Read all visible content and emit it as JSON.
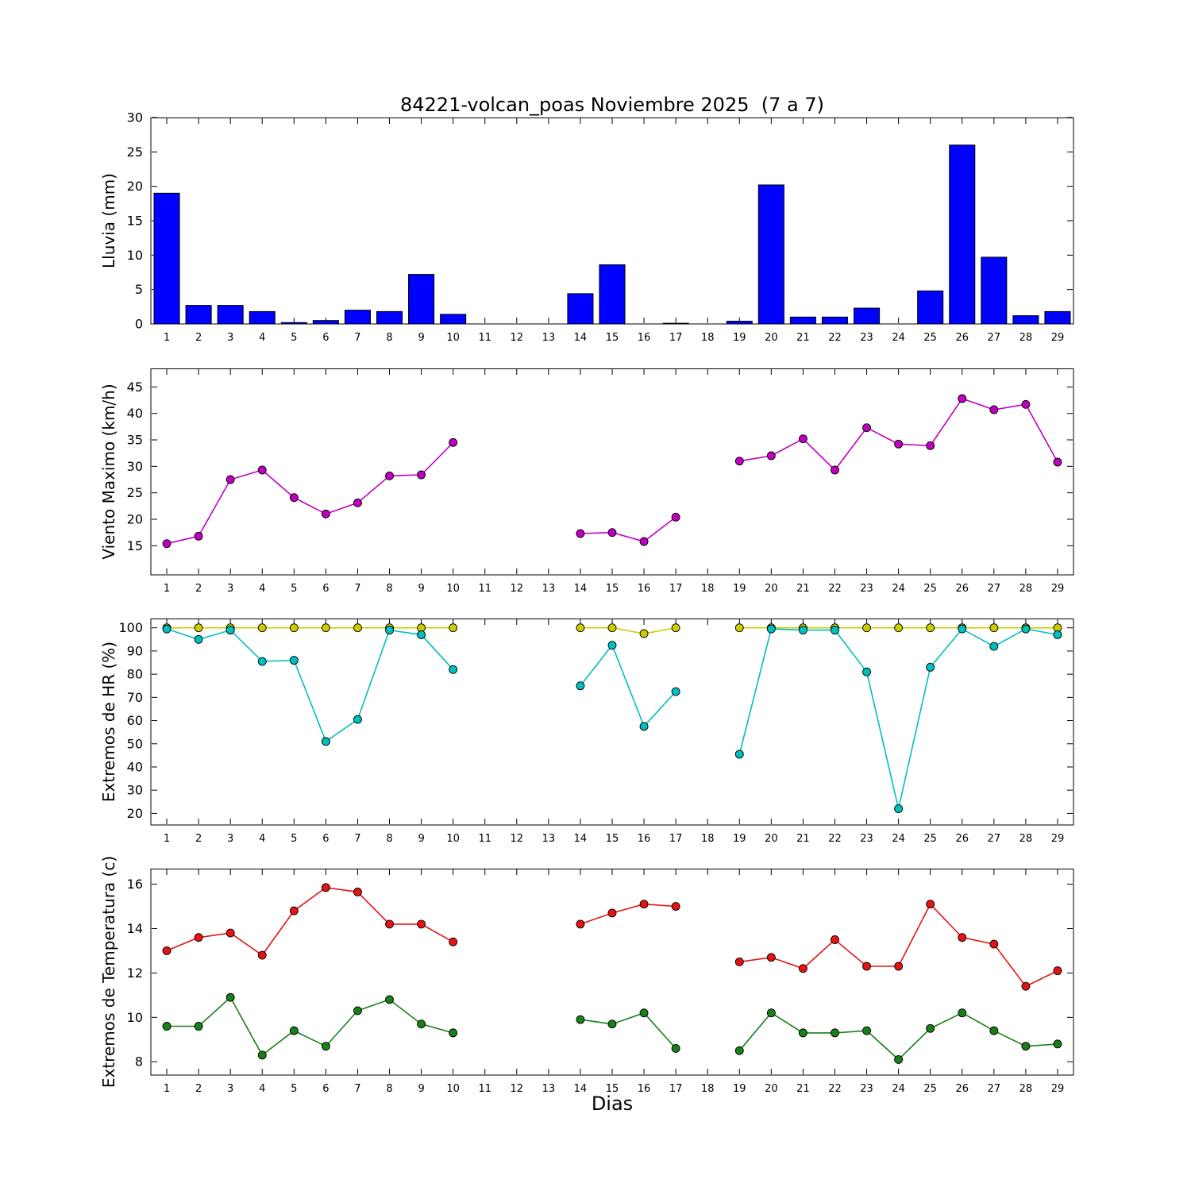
{
  "title": "84221-volcan_poas Noviembre 2025  (7 a 7)",
  "xlabel": "Dias",
  "chart_data": [
    {
      "type": "bar",
      "ylabel": "Lluvia (mm)",
      "color": "#0000ff",
      "ylim": [
        0,
        30
      ],
      "yticks": [
        0,
        5,
        10,
        15,
        20,
        25,
        30
      ],
      "categories": [
        1,
        2,
        3,
        4,
        5,
        6,
        7,
        8,
        9,
        10,
        11,
        12,
        13,
        14,
        15,
        16,
        17,
        18,
        19,
        20,
        21,
        22,
        23,
        24,
        25,
        26,
        27,
        28,
        29
      ],
      "values": [
        19.0,
        2.7,
        2.7,
        1.8,
        0.2,
        0.5,
        2.0,
        1.8,
        7.2,
        1.4,
        0,
        0,
        0,
        4.4,
        8.6,
        0,
        0.1,
        0,
        0.4,
        20.2,
        1.0,
        1.0,
        2.3,
        0,
        4.8,
        26.0,
        9.7,
        1.2,
        1.8
      ]
    },
    {
      "type": "line",
      "ylabel": "Viento Maximo (km/h)",
      "ylim": [
        9.5,
        48.5
      ],
      "yticks": [
        15,
        20,
        25,
        30,
        35,
        40,
        45
      ],
      "categories": [
        1,
        2,
        3,
        4,
        5,
        6,
        7,
        8,
        9,
        10,
        11,
        12,
        13,
        14,
        15,
        16,
        17,
        18,
        19,
        20,
        21,
        22,
        23,
        24,
        25,
        26,
        27,
        28,
        29
      ],
      "series": [
        {
          "name": "viento-maximo",
          "color": "#bf00bf",
          "values": [
            15.4,
            16.8,
            27.5,
            29.3,
            24.1,
            21.0,
            23.1,
            28.2,
            28.4,
            34.5,
            null,
            null,
            null,
            17.3,
            17.5,
            15.8,
            20.4,
            null,
            31.0,
            32.0,
            35.2,
            29.3,
            37.3,
            34.2,
            33.9,
            42.8,
            40.7,
            41.7,
            30.8
          ]
        }
      ]
    },
    {
      "type": "line",
      "ylabel": "Extremos de HR (%)",
      "ylim": [
        15,
        104
      ],
      "yticks": [
        20,
        30,
        40,
        50,
        60,
        70,
        80,
        90,
        100
      ],
      "categories": [
        1,
        2,
        3,
        4,
        5,
        6,
        7,
        8,
        9,
        10,
        11,
        12,
        13,
        14,
        15,
        16,
        17,
        18,
        19,
        20,
        21,
        22,
        23,
        24,
        25,
        26,
        27,
        28,
        29
      ],
      "series": [
        {
          "name": "hr-maxima",
          "color": "#cccc00",
          "values": [
            100,
            100,
            100,
            100,
            100,
            100,
            100,
            100,
            100,
            100,
            null,
            null,
            null,
            100,
            100,
            97.5,
            100,
            null,
            100,
            100,
            100,
            100,
            100,
            100,
            100,
            100,
            100,
            100,
            100
          ]
        },
        {
          "name": "hr-minima",
          "color": "#00bfbf",
          "values": [
            99.5,
            95,
            99,
            85.5,
            86,
            51,
            60.5,
            99,
            97,
            82,
            null,
            null,
            null,
            75,
            92.5,
            57.5,
            72.5,
            null,
            45.5,
            99.5,
            99,
            99,
            81,
            22,
            83,
            99.5,
            92,
            99.5,
            97
          ]
        }
      ]
    },
    {
      "type": "line",
      "ylabel": "Extremos de Temperatura (c)",
      "ylim": [
        7.4,
        16.7
      ],
      "yticks": [
        8,
        10,
        12,
        14,
        16
      ],
      "categories": [
        1,
        2,
        3,
        4,
        5,
        6,
        7,
        8,
        9,
        10,
        11,
        12,
        13,
        14,
        15,
        16,
        17,
        18,
        19,
        20,
        21,
        22,
        23,
        24,
        25,
        26,
        27,
        28,
        29
      ],
      "series": [
        {
          "name": "temperatura-maxima",
          "color": "#e41414",
          "values": [
            13.0,
            13.6,
            13.8,
            12.8,
            14.8,
            15.85,
            15.65,
            14.2,
            14.2,
            13.4,
            null,
            null,
            null,
            14.2,
            14.7,
            15.1,
            15.0,
            null,
            12.5,
            12.7,
            12.2,
            13.5,
            12.3,
            12.3,
            15.1,
            13.6,
            13.3,
            11.4,
            12.1
          ]
        },
        {
          "name": "temperatura-minima",
          "color": "#1a7f1a",
          "values": [
            9.6,
            9.6,
            10.9,
            8.3,
            9.4,
            8.7,
            10.3,
            10.8,
            9.7,
            9.3,
            null,
            null,
            null,
            9.9,
            9.7,
            10.2,
            8.6,
            null,
            8.5,
            10.2,
            9.3,
            9.3,
            9.4,
            8.1,
            9.5,
            10.2,
            9.4,
            8.7,
            8.8
          ]
        }
      ]
    }
  ]
}
